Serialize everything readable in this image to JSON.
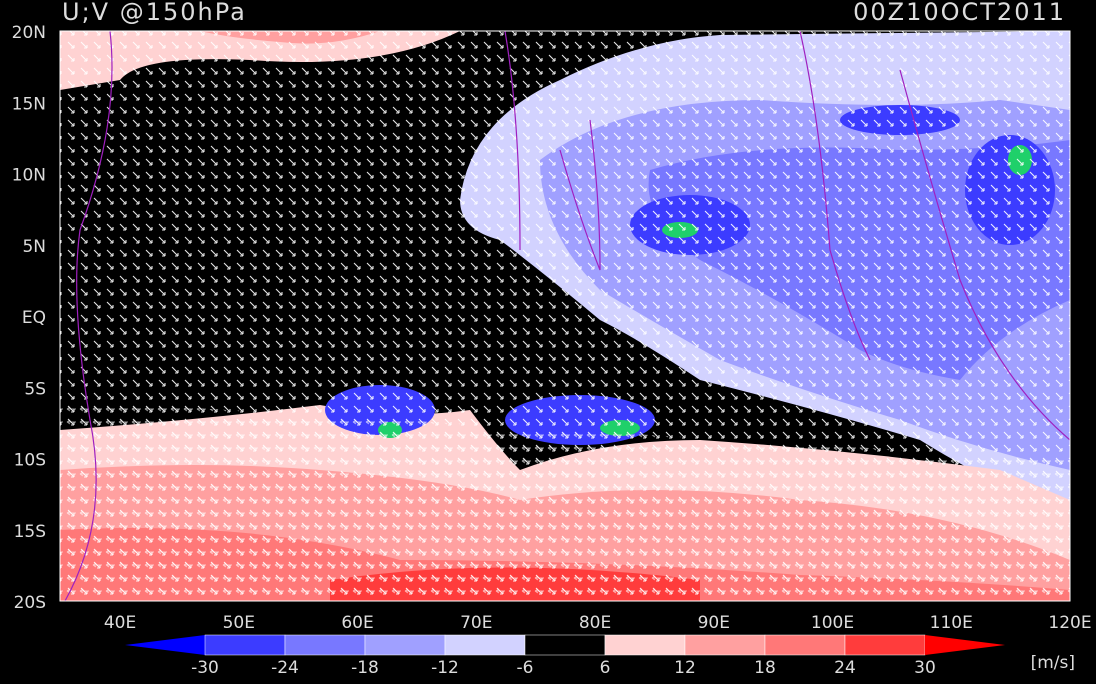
{
  "header": {
    "title": "U;V @150hPa",
    "time": "00Z10OCT2011"
  },
  "map": {
    "lat_labels": [
      "20N",
      "15N",
      "10N",
      "5N",
      "EQ",
      "5S",
      "10S",
      "15S",
      "20S"
    ],
    "lon_labels": [
      "40E",
      "50E",
      "60E",
      "70E",
      "80E",
      "90E",
      "100E",
      "110E",
      "120E"
    ]
  },
  "legend": {
    "levels": [
      -30,
      -24,
      -18,
      -12,
      -6,
      6,
      12,
      18,
      24,
      30
    ],
    "colors": [
      "#0000ff",
      "#3c3cff",
      "#7878ff",
      "#a0a0ff",
      "#d2d2ff",
      "#000000",
      "#ffd2d2",
      "#ffa0a0",
      "#ff7878",
      "#ff3c3c",
      "#ff0000"
    ],
    "units": "[m/s]"
  }
}
